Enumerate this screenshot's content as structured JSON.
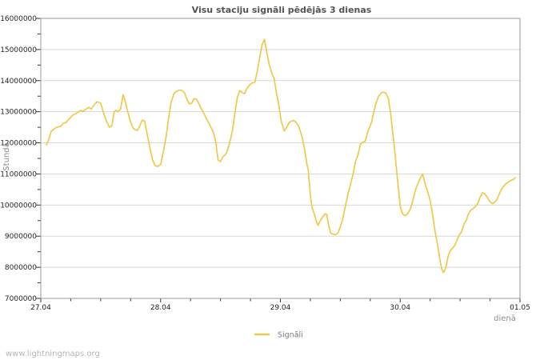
{
  "page": {
    "watermark": "www.lightningmaps.org"
  },
  "chart_data": {
    "type": "line",
    "title": "Visu staciju signāli pēdējās 3 dienas",
    "ylabel": "Stundā",
    "xlabel": "dienā",
    "legend": {
      "series_label": "Signāli",
      "position": "bottom-center"
    },
    "grid": "horizontal-only",
    "ylim": [
      7000000,
      16000000
    ],
    "xlim_days": [
      0,
      4
    ],
    "yticks": [
      7000000,
      8000000,
      9000000,
      10000000,
      11000000,
      12000000,
      13000000,
      14000000,
      15000000,
      16000000
    ],
    "ytick_minor_step": 500000,
    "xticks": [
      {
        "day": 0,
        "label": "27.04"
      },
      {
        "day": 1,
        "label": "28.04"
      },
      {
        "day": 2,
        "label": "29.04"
      },
      {
        "day": 3,
        "label": "30.04"
      },
      {
        "day": 4,
        "label": "01.05"
      }
    ],
    "xtick_minor_step_days": 0.25,
    "colors": {
      "series": "#EFC94C",
      "grid": "#d8d8d8",
      "border": "#999999",
      "tick": "#333333",
      "title": "#545454",
      "axis_title": "#8c8c8c",
      "legend_text": "#7d7d7d",
      "watermark": "#b5b5b5"
    },
    "series_name": "Signāli",
    "points_units": "x = days since 27.04, y = signals per hour",
    "points": [
      [
        0.047,
        11930000
      ],
      [
        0.067,
        12120000
      ],
      [
        0.087,
        12370000
      ],
      [
        0.113,
        12450000
      ],
      [
        0.133,
        12500000
      ],
      [
        0.167,
        12530000
      ],
      [
        0.187,
        12630000
      ],
      [
        0.213,
        12660000
      ],
      [
        0.233,
        12760000
      ],
      [
        0.267,
        12890000
      ],
      [
        0.3,
        12960000
      ],
      [
        0.333,
        13040000
      ],
      [
        0.353,
        13010000
      ],
      [
        0.38,
        13090000
      ],
      [
        0.4,
        13140000
      ],
      [
        0.42,
        13090000
      ],
      [
        0.447,
        13220000
      ],
      [
        0.467,
        13320000
      ],
      [
        0.487,
        13300000
      ],
      [
        0.5,
        13270000
      ],
      [
        0.52,
        13010000
      ],
      [
        0.547,
        12700000
      ],
      [
        0.573,
        12500000
      ],
      [
        0.593,
        12550000
      ],
      [
        0.613,
        13000000
      ],
      [
        0.627,
        13050000
      ],
      [
        0.647,
        13000000
      ],
      [
        0.667,
        13100000
      ],
      [
        0.687,
        13550000
      ],
      [
        0.707,
        13300000
      ],
      [
        0.72,
        13090000
      ],
      [
        0.747,
        12700000
      ],
      [
        0.767,
        12490000
      ],
      [
        0.787,
        12420000
      ],
      [
        0.807,
        12400000
      ],
      [
        0.827,
        12550000
      ],
      [
        0.847,
        12730000
      ],
      [
        0.867,
        12700000
      ],
      [
        0.887,
        12300000
      ],
      [
        0.913,
        11800000
      ],
      [
        0.933,
        11450000
      ],
      [
        0.953,
        11280000
      ],
      [
        0.973,
        11240000
      ],
      [
        1.0,
        11300000
      ],
      [
        1.027,
        11800000
      ],
      [
        1.047,
        12220000
      ],
      [
        1.067,
        12800000
      ],
      [
        1.087,
        13300000
      ],
      [
        1.113,
        13600000
      ],
      [
        1.133,
        13650000
      ],
      [
        1.153,
        13700000
      ],
      [
        1.18,
        13680000
      ],
      [
        1.2,
        13600000
      ],
      [
        1.22,
        13400000
      ],
      [
        1.24,
        13250000
      ],
      [
        1.26,
        13280000
      ],
      [
        1.28,
        13420000
      ],
      [
        1.3,
        13400000
      ],
      [
        1.32,
        13250000
      ],
      [
        1.333,
        13150000
      ],
      [
        1.36,
        12950000
      ],
      [
        1.387,
        12750000
      ],
      [
        1.413,
        12550000
      ],
      [
        1.44,
        12350000
      ],
      [
        1.46,
        12050000
      ],
      [
        1.48,
        11450000
      ],
      [
        1.5,
        11400000
      ],
      [
        1.52,
        11550000
      ],
      [
        1.54,
        11620000
      ],
      [
        1.553,
        11700000
      ],
      [
        1.573,
        11950000
      ],
      [
        1.6,
        12400000
      ],
      [
        1.62,
        12950000
      ],
      [
        1.64,
        13450000
      ],
      [
        1.66,
        13680000
      ],
      [
        1.68,
        13620000
      ],
      [
        1.7,
        13580000
      ],
      [
        1.72,
        13750000
      ],
      [
        1.74,
        13850000
      ],
      [
        1.76,
        13920000
      ],
      [
        1.787,
        13950000
      ],
      [
        1.807,
        14300000
      ],
      [
        1.827,
        14750000
      ],
      [
        1.847,
        15150000
      ],
      [
        1.867,
        15330000
      ],
      [
        1.887,
        14900000
      ],
      [
        1.907,
        14500000
      ],
      [
        1.927,
        14250000
      ],
      [
        1.947,
        14080000
      ],
      [
        1.967,
        13600000
      ],
      [
        1.987,
        13200000
      ],
      [
        2.007,
        12700000
      ],
      [
        2.033,
        12380000
      ],
      [
        2.053,
        12500000
      ],
      [
        2.073,
        12650000
      ],
      [
        2.093,
        12700000
      ],
      [
        2.113,
        12720000
      ],
      [
        2.133,
        12650000
      ],
      [
        2.153,
        12530000
      ],
      [
        2.18,
        12200000
      ],
      [
        2.2,
        11830000
      ],
      [
        2.22,
        11350000
      ],
      [
        2.233,
        11100000
      ],
      [
        2.253,
        10200000
      ],
      [
        2.267,
        9900000
      ],
      [
        2.28,
        9750000
      ],
      [
        2.3,
        9480000
      ],
      [
        2.313,
        9350000
      ],
      [
        2.333,
        9500000
      ],
      [
        2.353,
        9620000
      ],
      [
        2.373,
        9720000
      ],
      [
        2.387,
        9700000
      ],
      [
        2.4,
        9400000
      ],
      [
        2.42,
        9100000
      ],
      [
        2.44,
        9060000
      ],
      [
        2.46,
        9050000
      ],
      [
        2.48,
        9100000
      ],
      [
        2.5,
        9300000
      ],
      [
        2.52,
        9550000
      ],
      [
        2.547,
        10050000
      ],
      [
        2.567,
        10400000
      ],
      [
        2.587,
        10700000
      ],
      [
        2.607,
        11000000
      ],
      [
        2.627,
        11400000
      ],
      [
        2.647,
        11600000
      ],
      [
        2.667,
        11950000
      ],
      [
        2.687,
        12020000
      ],
      [
        2.707,
        12050000
      ],
      [
        2.733,
        12400000
      ],
      [
        2.76,
        12650000
      ],
      [
        2.78,
        13000000
      ],
      [
        2.8,
        13300000
      ],
      [
        2.82,
        13500000
      ],
      [
        2.84,
        13600000
      ],
      [
        2.86,
        13630000
      ],
      [
        2.88,
        13600000
      ],
      [
        2.9,
        13430000
      ],
      [
        2.92,
        12950000
      ],
      [
        2.933,
        12500000
      ],
      [
        2.953,
        11800000
      ],
      [
        2.973,
        11000000
      ],
      [
        3.0,
        9950000
      ],
      [
        3.02,
        9720000
      ],
      [
        3.04,
        9660000
      ],
      [
        3.053,
        9680000
      ],
      [
        3.08,
        9830000
      ],
      [
        3.1,
        10050000
      ],
      [
        3.113,
        10280000
      ],
      [
        3.133,
        10550000
      ],
      [
        3.16,
        10800000
      ],
      [
        3.187,
        11000000
      ],
      [
        3.207,
        10700000
      ],
      [
        3.227,
        10450000
      ],
      [
        3.247,
        10200000
      ],
      [
        3.267,
        9800000
      ],
      [
        3.287,
        9250000
      ],
      [
        3.313,
        8700000
      ],
      [
        3.333,
        8200000
      ],
      [
        3.347,
        7950000
      ],
      [
        3.36,
        7830000
      ],
      [
        3.373,
        7900000
      ],
      [
        3.387,
        8100000
      ],
      [
        3.4,
        8350000
      ],
      [
        3.42,
        8550000
      ],
      [
        3.447,
        8650000
      ],
      [
        3.467,
        8800000
      ],
      [
        3.487,
        9000000
      ],
      [
        3.513,
        9150000
      ],
      [
        3.533,
        9400000
      ],
      [
        3.553,
        9520000
      ],
      [
        3.567,
        9700000
      ],
      [
        3.587,
        9830000
      ],
      [
        3.607,
        9880000
      ],
      [
        3.627,
        9950000
      ],
      [
        3.647,
        10050000
      ],
      [
        3.667,
        10250000
      ],
      [
        3.687,
        10400000
      ],
      [
        3.707,
        10350000
      ],
      [
        3.727,
        10250000
      ],
      [
        3.747,
        10120000
      ],
      [
        3.767,
        10050000
      ],
      [
        3.787,
        10080000
      ],
      [
        3.807,
        10180000
      ],
      [
        3.827,
        10350000
      ],
      [
        3.847,
        10520000
      ],
      [
        3.867,
        10620000
      ],
      [
        3.887,
        10700000
      ],
      [
        3.907,
        10750000
      ],
      [
        3.927,
        10800000
      ],
      [
        3.947,
        10830000
      ],
      [
        3.96,
        10880000
      ]
    ]
  }
}
